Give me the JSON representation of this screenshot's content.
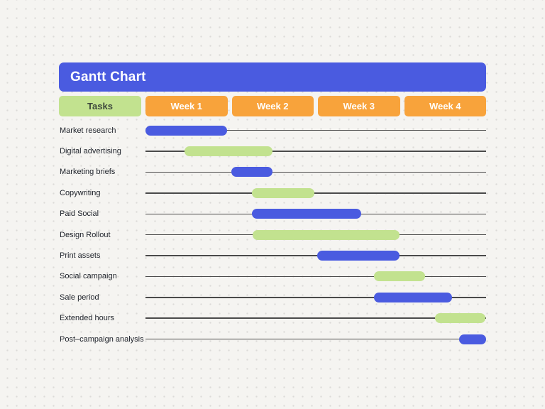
{
  "title": "Gantt Chart",
  "header": {
    "tasks_label": "Tasks",
    "weeks": [
      "Week 1",
      "Week 2",
      "Week 3",
      "Week 4"
    ]
  },
  "colors": {
    "primary_blue": "#4A5BE0",
    "bar_green": "#C2E28F",
    "header_orange": "#F8A33B",
    "page_background": "#F5F4F1",
    "timeline_line": "#4a4a4a"
  },
  "chart_data": {
    "type": "bar",
    "variant": "gantt",
    "title": "Gantt Chart",
    "x_unit": "weeks",
    "x_range": [
      0,
      4
    ],
    "categories": [
      "Week 1",
      "Week 2",
      "Week 3",
      "Week 4"
    ],
    "grid": false,
    "legend": "none",
    "tasks": [
      {
        "label": "Market research",
        "start": 0.0,
        "end": 0.96,
        "color": "blue"
      },
      {
        "label": "Digital advertising",
        "start": 0.46,
        "end": 1.49,
        "color": "green"
      },
      {
        "label": "Marketing briefs",
        "start": 1.01,
        "end": 1.49,
        "color": "blue"
      },
      {
        "label": "Copywriting",
        "start": 1.25,
        "end": 1.98,
        "color": "green"
      },
      {
        "label": "Paid Social",
        "start": 1.25,
        "end": 2.53,
        "color": "blue"
      },
      {
        "label": "Design Rollout",
        "start": 1.26,
        "end": 2.98,
        "color": "green"
      },
      {
        "label": "Print assets",
        "start": 2.02,
        "end": 2.98,
        "color": "blue"
      },
      {
        "label": "Social campaign",
        "start": 2.68,
        "end": 3.28,
        "color": "green"
      },
      {
        "label": "Sale period",
        "start": 2.68,
        "end": 3.6,
        "color": "blue"
      },
      {
        "label": "Extended hours",
        "start": 3.4,
        "end": 3.99,
        "color": "green"
      },
      {
        "label": "Post–campaign analysis",
        "start": 3.68,
        "end": 4.0,
        "color": "blue"
      }
    ]
  }
}
